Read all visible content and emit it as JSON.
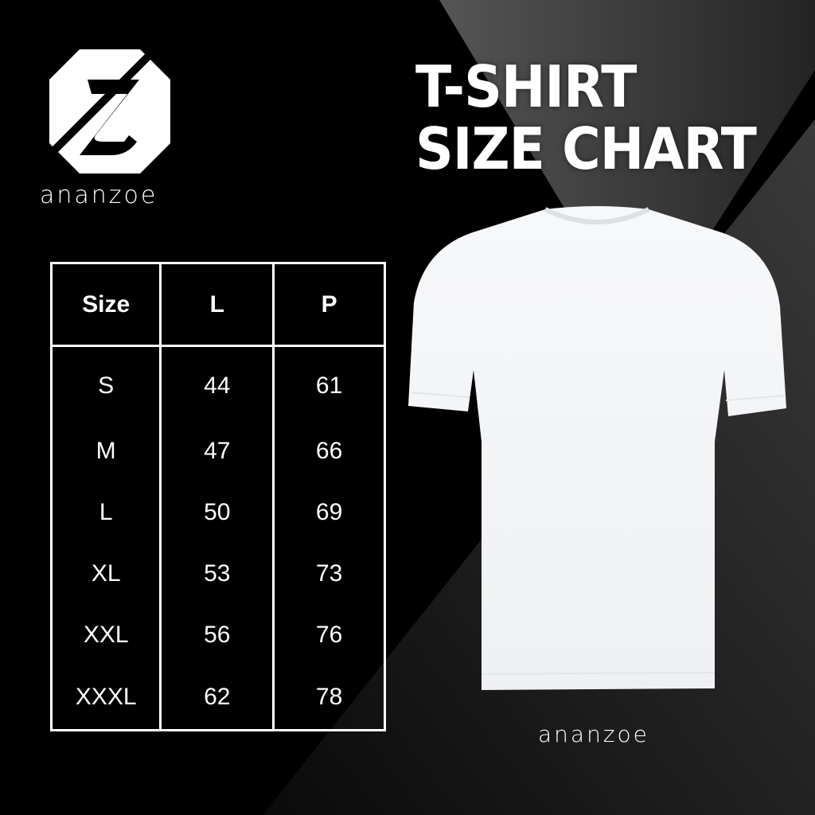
{
  "brand": {
    "name": "ananzoe",
    "wordmark_top": "ananzoe",
    "wordmark_bottom": "ananzoe"
  },
  "title": {
    "line1": "T-SHIRT",
    "line2": "SIZE CHART"
  },
  "size_table": {
    "headers": [
      "Size",
      "L",
      "P"
    ],
    "rows": [
      [
        "S",
        "44",
        "61"
      ],
      [
        "M",
        "47",
        "66"
      ],
      [
        "L",
        "50",
        "69"
      ],
      [
        "XL",
        "53",
        "73"
      ],
      [
        "XXL",
        "56",
        "76"
      ],
      [
        "XXXL",
        "62",
        "78"
      ]
    ]
  },
  "colors": {
    "background": "#000000",
    "accent_gray": "#4a4a4a",
    "text": "#ffffff",
    "shirt": "#f4f5f7"
  }
}
